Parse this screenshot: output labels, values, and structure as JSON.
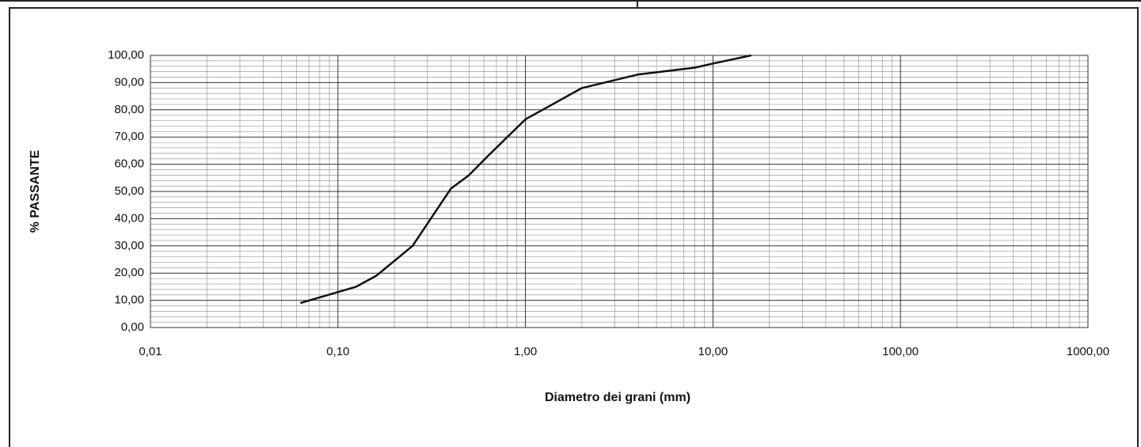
{
  "chart_data": {
    "type": "line",
    "xlabel": "Diametro dei grani (mm)",
    "ylabel": "% PASSANTE",
    "x": [
      0.063,
      0.125,
      0.16,
      0.25,
      0.4,
      0.5,
      0.63,
      1.0,
      2.0,
      4.0,
      8.0,
      10.0,
      16.0
    ],
    "series": [
      {
        "color": "#111111",
        "values": [
          9,
          15,
          19,
          30,
          51,
          56,
          63,
          76.5,
          88,
          93,
          95.5,
          97,
          100
        ]
      }
    ],
    "xscale": "log",
    "xlim": [
      0.01,
      1000
    ],
    "xticks": [
      {
        "value": 0.01,
        "label": "0,01"
      },
      {
        "value": 0.1,
        "label": "0,10"
      },
      {
        "value": 1,
        "label": "1,00"
      },
      {
        "value": 10,
        "label": "10,00"
      },
      {
        "value": 100,
        "label": "100,00"
      },
      {
        "value": 1000,
        "label": "1000,00"
      }
    ],
    "ylim": [
      0,
      100
    ],
    "yticks": [
      {
        "value": 0,
        "label": "0,00"
      },
      {
        "value": 10,
        "label": "10,00"
      },
      {
        "value": 20,
        "label": "20,00"
      },
      {
        "value": 30,
        "label": "30,00"
      },
      {
        "value": 40,
        "label": "40,00"
      },
      {
        "value": 50,
        "label": "50,00"
      },
      {
        "value": 60,
        "label": "60,00"
      },
      {
        "value": 70,
        "label": "70,00"
      },
      {
        "value": 80,
        "label": "80,00"
      },
      {
        "value": 90,
        "label": "90,00"
      },
      {
        "value": 100,
        "label": "100,00"
      }
    ],
    "grid": true
  }
}
